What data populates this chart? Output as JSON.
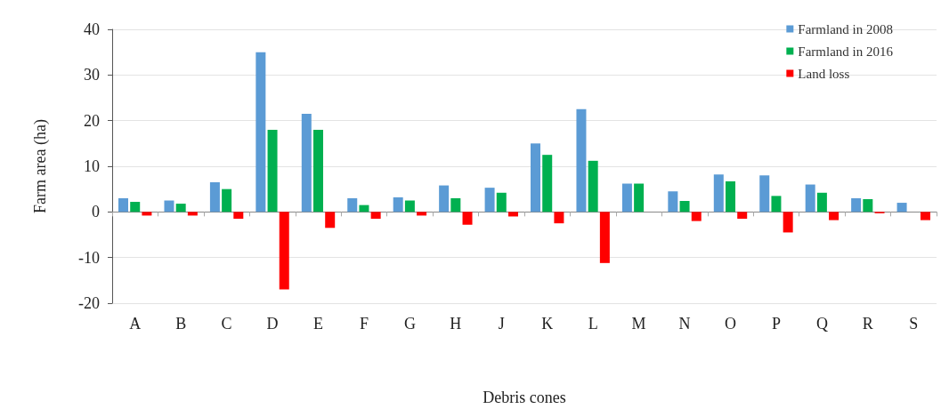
{
  "chart_data": {
    "type": "bar",
    "xlabel": "Debris cones",
    "ylabel": "Farm area (ha)",
    "categories": [
      "A",
      "B",
      "C",
      "D",
      "E",
      "F",
      "G",
      "H",
      "J",
      "K",
      "L",
      "M",
      "N",
      "O",
      "P",
      "Q",
      "R",
      "S"
    ],
    "series": [
      {
        "name": "Farmland in 2008",
        "color": "#5b9bd5",
        "values": [
          3,
          2.5,
          6.5,
          35,
          21.5,
          3,
          3.2,
          5.8,
          5.3,
          15,
          22.5,
          6.2,
          4.5,
          8.2,
          8,
          6,
          3,
          2
        ]
      },
      {
        "name": "Farmland in 2016",
        "color": "#00b050",
        "values": [
          2.2,
          1.8,
          5,
          18,
          18,
          1.5,
          2.5,
          3,
          4.2,
          12.5,
          11.2,
          6.2,
          2.4,
          6.7,
          3.5,
          4.2,
          2.8,
          0
        ]
      },
      {
        "name": "Land loss",
        "color": "#ff0000",
        "values": [
          -0.8,
          -0.8,
          -1.5,
          -17,
          -3.5,
          -1.5,
          -0.8,
          -2.8,
          -1,
          -2.5,
          -11.2,
          0,
          -2,
          -1.5,
          -4.5,
          -1.8,
          -0.3,
          -1.8
        ]
      }
    ],
    "ylim": [
      -20,
      40
    ],
    "yticks": [
      -20,
      -10,
      0,
      10,
      20,
      30,
      40
    ],
    "grid": "y",
    "legend": "top right"
  }
}
